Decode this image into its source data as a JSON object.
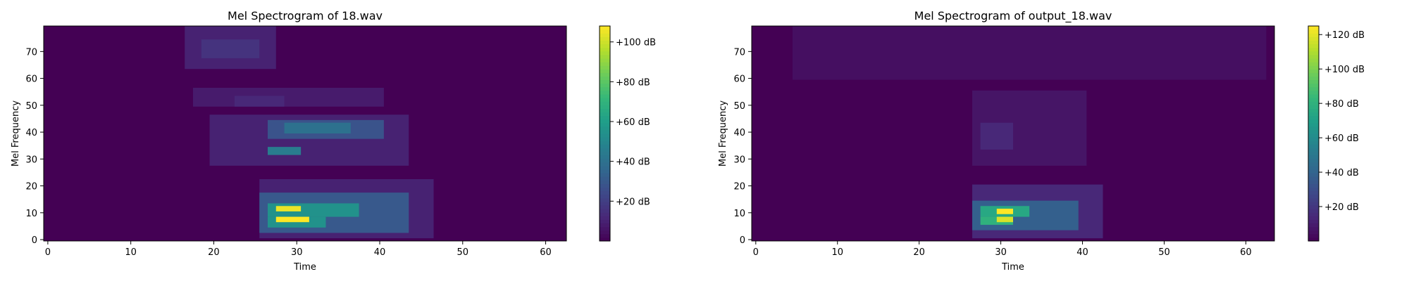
{
  "chart_data": [
    {
      "type": "heatmap",
      "title": "Mel Spectrogram of 18.wav",
      "xlabel": "Time",
      "ylabel": "Mel Frequency",
      "xlim": [
        -0.5,
        62.5
      ],
      "ylim": [
        -0.5,
        79.5
      ],
      "x_ticks": [
        0,
        10,
        20,
        30,
        40,
        50,
        60
      ],
      "y_ticks": [
        0,
        10,
        20,
        30,
        40,
        50,
        60,
        70
      ],
      "colormap": "viridis",
      "colorbar": {
        "min": 0,
        "max": 108,
        "ticks": [
          20,
          40,
          60,
          80,
          100
        ],
        "tick_labels": [
          "+20 dB",
          "+40 dB",
          "+60 dB",
          "+80 dB",
          "+100 dB"
        ]
      },
      "hotspots": [
        {
          "x": [
            17,
            27
          ],
          "y": [
            64,
            79
          ],
          "value": 10
        },
        {
          "x": [
            19,
            25
          ],
          "y": [
            68,
            74
          ],
          "value": 16
        },
        {
          "x": [
            18,
            40
          ],
          "y": [
            50,
            56
          ],
          "value": 8
        },
        {
          "x": [
            23,
            28
          ],
          "y": [
            50,
            53
          ],
          "value": 12
        },
        {
          "x": [
            20,
            43
          ],
          "y": [
            28,
            46
          ],
          "value": 10
        },
        {
          "x": [
            27,
            40
          ],
          "y": [
            38,
            44
          ],
          "value": 28
        },
        {
          "x": [
            29,
            36
          ],
          "y": [
            40,
            43
          ],
          "value": 40
        },
        {
          "x": [
            27,
            30
          ],
          "y": [
            32,
            34
          ],
          "value": 45
        },
        {
          "x": [
            26,
            46
          ],
          "y": [
            1,
            22
          ],
          "value": 10
        },
        {
          "x": [
            26,
            43
          ],
          "y": [
            3,
            17
          ],
          "value": 30
        },
        {
          "x": [
            27,
            37
          ],
          "y": [
            9,
            13
          ],
          "value": 55
        },
        {
          "x": [
            27,
            33
          ],
          "y": [
            5,
            8
          ],
          "value": 55
        },
        {
          "x": [
            28,
            30
          ],
          "y": [
            11,
            12
          ],
          "value": 105
        },
        {
          "x": [
            28,
            31
          ],
          "y": [
            7,
            8
          ],
          "value": 108
        }
      ]
    },
    {
      "type": "heatmap",
      "title": "Mel Spectrogram of output_18.wav",
      "xlabel": "Time",
      "ylabel": "Mel Frequency",
      "xlim": [
        -0.5,
        63.5
      ],
      "ylim": [
        -0.5,
        79.5
      ],
      "x_ticks": [
        0,
        10,
        20,
        30,
        40,
        50,
        60
      ],
      "y_ticks": [
        0,
        10,
        20,
        30,
        40,
        50,
        60,
        70
      ],
      "colormap": "viridis",
      "colorbar": {
        "min": 0,
        "max": 125,
        "ticks": [
          20,
          40,
          60,
          80,
          100,
          120
        ],
        "tick_labels": [
          "+20 dB",
          "+40 dB",
          "+60 dB",
          "+80 dB",
          "+100 dB",
          "+120 dB"
        ]
      },
      "hotspots": [
        {
          "x": [
            5,
            62
          ],
          "y": [
            60,
            79
          ],
          "value": 5
        },
        {
          "x": [
            27,
            40
          ],
          "y": [
            28,
            55
          ],
          "value": 7
        },
        {
          "x": [
            28,
            31
          ],
          "y": [
            34,
            43
          ],
          "value": 14
        },
        {
          "x": [
            27,
            42
          ],
          "y": [
            1,
            20
          ],
          "value": 14
        },
        {
          "x": [
            27,
            39
          ],
          "y": [
            4,
            14
          ],
          "value": 38
        },
        {
          "x": [
            28,
            33
          ],
          "y": [
            9,
            12
          ],
          "value": 75
        },
        {
          "x": [
            28,
            31
          ],
          "y": [
            6,
            8
          ],
          "value": 80
        },
        {
          "x": [
            30,
            31
          ],
          "y": [
            10,
            11
          ],
          "value": 125
        },
        {
          "x": [
            30,
            31
          ],
          "y": [
            7,
            8
          ],
          "value": 118
        }
      ]
    }
  ]
}
